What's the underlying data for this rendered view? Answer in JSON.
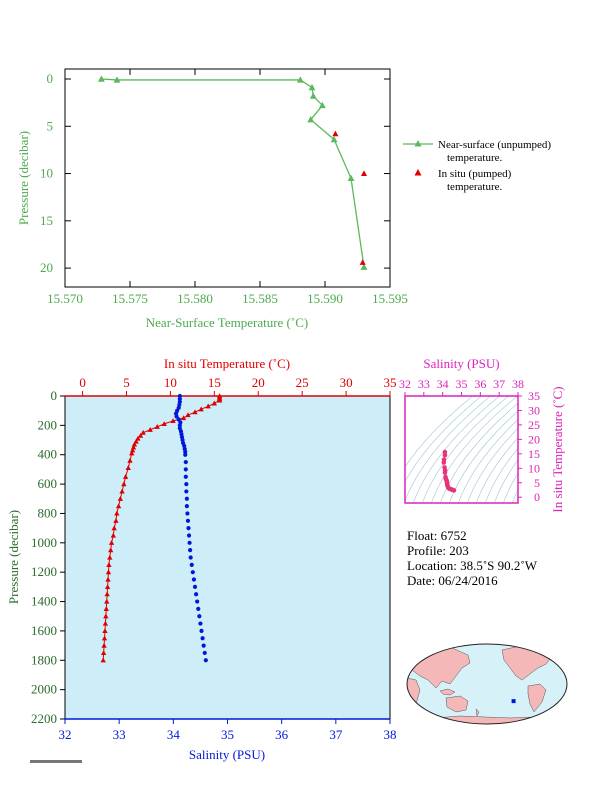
{
  "chart_data": [
    {
      "type": "line",
      "ylabel": "Pressure (decibar)",
      "xlabel": "Near-Surface Temperature (˚C)",
      "xlim": [
        15.57,
        15.595
      ],
      "ylim": [
        0,
        22
      ],
      "y_inverted": true,
      "x_ticks": [
        "15.570",
        "15.575",
        "15.580",
        "15.585",
        "15.590",
        "15.595"
      ],
      "x_tick_values": [
        15.57,
        15.575,
        15.58,
        15.585,
        15.59,
        15.595
      ],
      "y_ticks": [
        "0",
        "5",
        "10",
        "15",
        "20"
      ],
      "y_tick_values": [
        0,
        5,
        10,
        15,
        20
      ],
      "colors": {
        "unpumped": "#5cb85c",
        "pumped": "#e00000",
        "axis_text": "#4daa4d"
      },
      "series": [
        {
          "name": "Near-surface (unpumped) temperature.",
          "marker": "triangle",
          "points": [
            [
              15.5728,
              0.0
            ],
            [
              15.574,
              0.1
            ],
            [
              15.5881,
              0.1
            ],
            [
              15.589,
              0.9
            ],
            [
              15.5891,
              1.8
            ],
            [
              15.5898,
              2.8
            ],
            [
              15.5889,
              4.3
            ],
            [
              15.5907,
              6.4
            ],
            [
              15.592,
              10.5
            ],
            [
              15.593,
              19.9
            ]
          ]
        },
        {
          "name": "In situ (pumped) temperature.",
          "marker": "triangle",
          "points": [
            [
              15.5908,
              5.8
            ],
            [
              15.593,
              10.0
            ],
            [
              15.5929,
              19.4
            ]
          ]
        }
      ],
      "legend": {
        "position": "right",
        "unpumped_line1": "Near-surface (unpumped)",
        "unpumped_line2": "temperature.",
        "pumped_line1": "In situ (pumped)",
        "pumped_line2": "temperature."
      }
    },
    {
      "type": "scatter",
      "top_axis_label": "In situ Temperature (˚C)",
      "bottom_axis_label": "Salinity (PSU)",
      "ylabel": "Pressure (decibar)",
      "temp_xlim": [
        -2,
        35
      ],
      "sal_xlim": [
        32,
        38
      ],
      "ylim": [
        0,
        2200
      ],
      "y_inverted": true,
      "temp_ticks": [
        "0",
        "5",
        "10",
        "15",
        "20",
        "25",
        "30",
        "35"
      ],
      "temp_tick_values": [
        0,
        5,
        10,
        15,
        20,
        25,
        30,
        35
      ],
      "sal_ticks": [
        "32",
        "33",
        "34",
        "35",
        "36",
        "37",
        "38"
      ],
      "sal_tick_values": [
        32,
        33,
        34,
        35,
        36,
        37,
        38
      ],
      "y_ticks": [
        "0",
        "200",
        "400",
        "600",
        "800",
        "1000",
        "1200",
        "1400",
        "1600",
        "1800",
        "2000",
        "2200"
      ],
      "y_tick_values": [
        0,
        200,
        400,
        600,
        800,
        1000,
        1200,
        1400,
        1600,
        1800,
        2000,
        2200
      ],
      "colors": {
        "temperature": "#e00000",
        "salinity": "#0018d8",
        "background": "#cdeef8"
      },
      "temperature": [
        [
          15.6,
          0
        ],
        [
          15.6,
          10
        ],
        [
          15.6,
          20
        ],
        [
          15.6,
          30
        ],
        [
          15.0,
          50
        ],
        [
          14.3,
          70
        ],
        [
          13.5,
          90
        ],
        [
          12.8,
          110
        ],
        [
          12.0,
          130
        ],
        [
          11.5,
          150
        ],
        [
          10.3,
          170
        ],
        [
          9.3,
          190
        ],
        [
          8.5,
          210
        ],
        [
          7.7,
          230
        ],
        [
          6.9,
          250
        ],
        [
          6.6,
          270
        ],
        [
          6.3,
          290
        ],
        [
          6.1,
          310
        ],
        [
          5.9,
          330
        ],
        [
          5.8,
          350
        ],
        [
          5.7,
          370
        ],
        [
          5.6,
          390
        ],
        [
          5.4,
          440
        ],
        [
          5.2,
          490
        ],
        [
          4.9,
          550
        ],
        [
          4.7,
          600
        ],
        [
          4.5,
          650
        ],
        [
          4.3,
          700
        ],
        [
          4.1,
          750
        ],
        [
          3.9,
          800
        ],
        [
          3.8,
          850
        ],
        [
          3.6,
          900
        ],
        [
          3.5,
          950
        ],
        [
          3.3,
          1000
        ],
        [
          3.2,
          1050
        ],
        [
          3.1,
          1100
        ],
        [
          3.0,
          1150
        ],
        [
          2.95,
          1200
        ],
        [
          2.9,
          1250
        ],
        [
          2.85,
          1300
        ],
        [
          2.8,
          1350
        ],
        [
          2.75,
          1400
        ],
        [
          2.7,
          1450
        ],
        [
          2.65,
          1500
        ],
        [
          2.6,
          1550
        ],
        [
          2.55,
          1600
        ],
        [
          2.5,
          1650
        ],
        [
          2.45,
          1700
        ],
        [
          2.4,
          1750
        ],
        [
          2.35,
          1800
        ]
      ],
      "salinity": [
        [
          34.12,
          0
        ],
        [
          34.12,
          20
        ],
        [
          34.12,
          40
        ],
        [
          34.11,
          60
        ],
        [
          34.1,
          80
        ],
        [
          34.07,
          100
        ],
        [
          34.05,
          120
        ],
        [
          34.06,
          140
        ],
        [
          34.1,
          160
        ],
        [
          34.13,
          180
        ],
        [
          34.12,
          200
        ],
        [
          34.12,
          220
        ],
        [
          34.14,
          240
        ],
        [
          34.15,
          260
        ],
        [
          34.16,
          280
        ],
        [
          34.17,
          300
        ],
        [
          34.18,
          320
        ],
        [
          34.2,
          340
        ],
        [
          34.21,
          360
        ],
        [
          34.22,
          380
        ],
        [
          34.22,
          400
        ],
        [
          34.23,
          450
        ],
        [
          34.23,
          500
        ],
        [
          34.23,
          550
        ],
        [
          34.24,
          600
        ],
        [
          34.24,
          650
        ],
        [
          34.25,
          700
        ],
        [
          34.25,
          750
        ],
        [
          34.26,
          800
        ],
        [
          34.27,
          850
        ],
        [
          34.28,
          900
        ],
        [
          34.29,
          950
        ],
        [
          34.3,
          1000
        ],
        [
          34.31,
          1050
        ],
        [
          34.32,
          1100
        ],
        [
          34.34,
          1150
        ],
        [
          34.36,
          1200
        ],
        [
          34.38,
          1250
        ],
        [
          34.4,
          1300
        ],
        [
          34.42,
          1350
        ],
        [
          34.44,
          1400
        ],
        [
          34.46,
          1450
        ],
        [
          34.48,
          1500
        ],
        [
          34.5,
          1550
        ],
        [
          34.52,
          1600
        ],
        [
          34.54,
          1650
        ],
        [
          34.56,
          1700
        ],
        [
          34.58,
          1750
        ],
        [
          34.6,
          1800
        ]
      ]
    },
    {
      "type": "scatter",
      "top_axis_label": "Salinity (PSU)",
      "right_axis_label": "In situ Temperature (˚C)",
      "sal_xlim": [
        32,
        38
      ],
      "temp_ylim": [
        -2,
        35
      ],
      "sal_ticks": [
        "32",
        "33",
        "34",
        "35",
        "36",
        "37",
        "38"
      ],
      "sal_tick_values": [
        32,
        33,
        34,
        35,
        36,
        37,
        38
      ],
      "temp_ticks": [
        "0",
        "5",
        "10",
        "15",
        "20",
        "25",
        "30",
        "35"
      ],
      "temp_tick_values": [
        0,
        5,
        10,
        15,
        20,
        25,
        30,
        35
      ],
      "colors": {
        "frame": "#dd22bb",
        "points": "#e8337a",
        "isopycnals": "#9ec7d4"
      },
      "ts_points": [
        [
          34.12,
          15.6
        ],
        [
          34.12,
          14.5
        ],
        [
          34.07,
          13.0
        ],
        [
          34.06,
          12.0
        ],
        [
          34.1,
          10.3
        ],
        [
          34.13,
          9.3
        ],
        [
          34.12,
          8.5
        ],
        [
          34.15,
          7.0
        ],
        [
          34.17,
          6.3
        ],
        [
          34.2,
          5.9
        ],
        [
          34.22,
          5.6
        ],
        [
          34.23,
          5.0
        ],
        [
          34.24,
          4.5
        ],
        [
          34.26,
          3.9
        ],
        [
          34.3,
          3.3
        ],
        [
          34.34,
          3.0
        ],
        [
          34.4,
          2.85
        ],
        [
          34.46,
          2.7
        ],
        [
          34.52,
          2.55
        ],
        [
          34.6,
          2.35
        ]
      ]
    }
  ],
  "info": {
    "float_line": "Float:  6752",
    "profile_line": "Profile:  203",
    "location_line": "Location:  38.5˚S  90.2˚W",
    "date_line": "Date:  06/24/2016"
  },
  "map": {
    "float_lat": -38.5,
    "float_lon": -90.2,
    "colors": {
      "ocean": "#d6f1f8",
      "land": "#f4b8b8",
      "float": "#0018d8"
    }
  }
}
